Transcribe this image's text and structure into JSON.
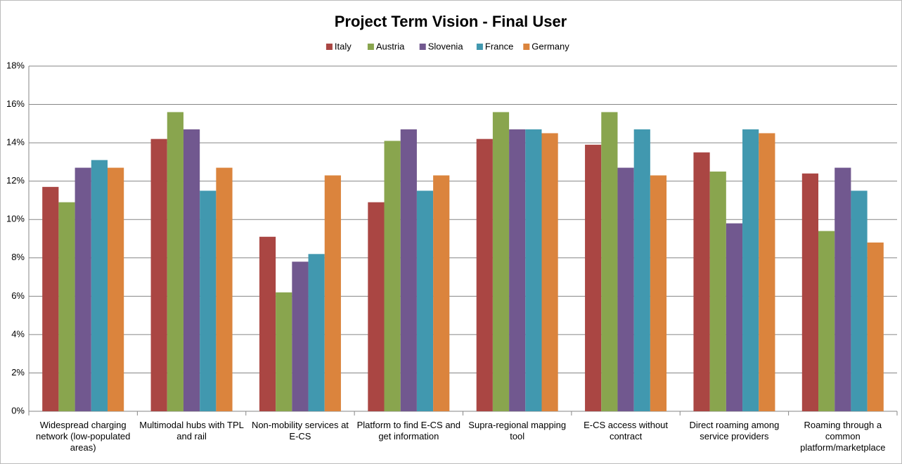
{
  "chart_data": {
    "type": "bar",
    "title": "Project Term Vision - Final User",
    "categories": [
      "Widespread charging network (low-populated areas)",
      "Multimodal hubs with TPL and rail",
      "Non-mobility services at E-CS",
      "Platform to find E-CS and get information",
      "Supra-regional mapping tool",
      "E-CS access without contract",
      "Direct roaming among service providers",
      "Roaming through a common platform/marketplace"
    ],
    "series": [
      {
        "name": "Italy",
        "color": "#aa4643",
        "values": [
          11.7,
          14.2,
          9.1,
          10.9,
          14.2,
          13.9,
          13.5,
          12.4
        ]
      },
      {
        "name": "Austria",
        "color": "#89a54e",
        "values": [
          10.9,
          15.6,
          6.2,
          14.1,
          15.6,
          15.6,
          12.5,
          9.4
        ]
      },
      {
        "name": "Slovenia",
        "color": "#71588f",
        "values": [
          12.7,
          14.7,
          7.8,
          14.7,
          14.7,
          12.7,
          9.8,
          12.7
        ]
      },
      {
        "name": "France",
        "color": "#4198af",
        "values": [
          13.1,
          11.5,
          8.2,
          11.5,
          14.7,
          14.7,
          14.7,
          11.5
        ]
      },
      {
        "name": "Germany",
        "color": "#db843d",
        "values": [
          12.7,
          12.7,
          12.3,
          12.3,
          14.5,
          12.3,
          14.5,
          8.8
        ]
      }
    ],
    "ylim": [
      0,
      18
    ],
    "yticks": [
      {
        "value": 0,
        "label": "0%"
      },
      {
        "value": 2,
        "label": "2%"
      },
      {
        "value": 4,
        "label": "4%"
      },
      {
        "value": 6,
        "label": "6%"
      },
      {
        "value": 8,
        "label": "8%"
      },
      {
        "value": 10,
        "label": "10%"
      },
      {
        "value": 12,
        "label": "12%"
      },
      {
        "value": 14,
        "label": "14%"
      },
      {
        "value": 16,
        "label": "16%"
      },
      {
        "value": 18,
        "label": "18%"
      }
    ],
    "grid": true,
    "legend": "top"
  }
}
